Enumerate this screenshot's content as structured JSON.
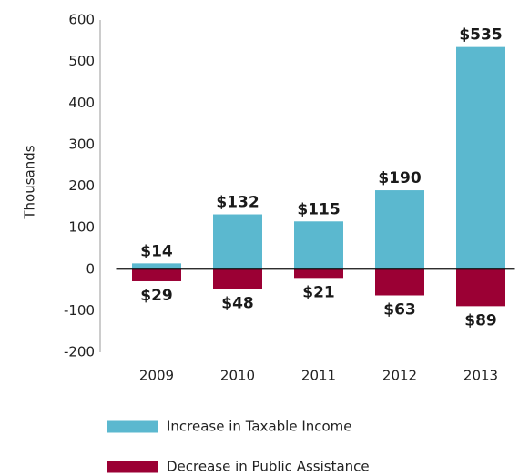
{
  "chart_data": {
    "type": "bar",
    "y_axis_label": "Thousands",
    "categories": [
      "2009",
      "2010",
      "2011",
      "2012",
      "2013"
    ],
    "series": [
      {
        "name": "Increase in Taxable Income",
        "color": "#5bb8cf",
        "values": [
          14,
          132,
          115,
          190,
          535
        ],
        "value_labels": [
          "$14",
          "$132",
          "$115",
          "$190",
          "$535"
        ]
      },
      {
        "name": "Decrease in Public Assistance",
        "color": "#9b0034",
        "values": [
          -29,
          -48,
          -21,
          -63,
          -89
        ],
        "value_labels": [
          "$29",
          "$48",
          "$21",
          "$63",
          "$89"
        ]
      }
    ],
    "ylim": [
      -200,
      600
    ],
    "yticks": [
      -200,
      -100,
      0,
      100,
      200,
      300,
      400,
      500,
      600
    ],
    "grid": false
  }
}
